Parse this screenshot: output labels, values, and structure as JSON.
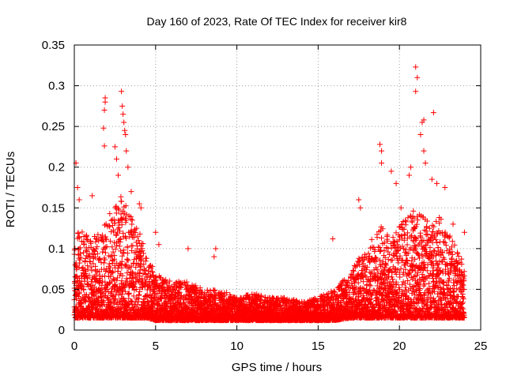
{
  "chart_data": {
    "type": "scatter",
    "title": "Day 160 of 2023, Rate Of TEC Index for receiver kir8",
    "xlabel": "GPS time / hours",
    "ylabel": "ROTI / TECUs",
    "xlim": [
      0,
      25
    ],
    "ylim": [
      0,
      0.35
    ],
    "x_ticks": [
      "0",
      "5",
      "10",
      "15",
      "20",
      "25"
    ],
    "y_ticks": [
      "0",
      "0.05",
      "0.1",
      "0.15",
      "0.2",
      "0.25",
      "0.3",
      "0.35"
    ],
    "grid": true,
    "legend": "none",
    "marker": "+",
    "series_color": "#ff0000",
    "x_range_of_data": [
      0,
      24
    ],
    "envelope": {
      "hours": [
        0,
        0.5,
        1,
        1.5,
        2,
        2.5,
        3,
        3.5,
        4,
        4.5,
        5,
        6,
        7,
        8,
        9,
        10,
        11,
        12,
        13,
        14,
        15,
        16,
        17,
        17.5,
        18,
        18.5,
        19,
        19.5,
        20,
        20.5,
        21,
        21.5,
        22,
        22.5,
        23,
        23.5,
        24
      ],
      "typical_max": [
        0.12,
        0.13,
        0.11,
        0.12,
        0.14,
        0.15,
        0.17,
        0.14,
        0.12,
        0.09,
        0.07,
        0.06,
        0.06,
        0.05,
        0.05,
        0.04,
        0.045,
        0.04,
        0.04,
        0.035,
        0.04,
        0.05,
        0.07,
        0.09,
        0.1,
        0.12,
        0.13,
        0.11,
        0.13,
        0.14,
        0.15,
        0.14,
        0.13,
        0.14,
        0.12,
        0.1,
        0.08
      ],
      "typical_min": [
        0.015,
        0.015,
        0.015,
        0.015,
        0.015,
        0.015,
        0.015,
        0.015,
        0.015,
        0.015,
        0.012,
        0.012,
        0.012,
        0.012,
        0.012,
        0.012,
        0.012,
        0.012,
        0.012,
        0.012,
        0.012,
        0.012,
        0.015,
        0.015,
        0.015,
        0.015,
        0.015,
        0.015,
        0.015,
        0.015,
        0.015,
        0.015,
        0.015,
        0.015,
        0.015,
        0.015,
        0.015
      ]
    },
    "peaks": [
      {
        "x": 0.1,
        "y": 0.205
      },
      {
        "x": 0.2,
        "y": 0.175
      },
      {
        "x": 0.3,
        "y": 0.16
      },
      {
        "x": 1.1,
        "y": 0.165
      },
      {
        "x": 1.9,
        "y": 0.285
      },
      {
        "x": 1.9,
        "y": 0.28
      },
      {
        "x": 1.85,
        "y": 0.27
      },
      {
        "x": 1.8,
        "y": 0.248
      },
      {
        "x": 1.85,
        "y": 0.226
      },
      {
        "x": 2.5,
        "y": 0.225
      },
      {
        "x": 2.6,
        "y": 0.21
      },
      {
        "x": 2.7,
        "y": 0.19
      },
      {
        "x": 2.9,
        "y": 0.293
      },
      {
        "x": 2.95,
        "y": 0.275
      },
      {
        "x": 3.0,
        "y": 0.265
      },
      {
        "x": 3.05,
        "y": 0.255
      },
      {
        "x": 3.1,
        "y": 0.245
      },
      {
        "x": 3.15,
        "y": 0.24
      },
      {
        "x": 3.2,
        "y": 0.22
      },
      {
        "x": 3.3,
        "y": 0.2
      },
      {
        "x": 3.5,
        "y": 0.17
      },
      {
        "x": 4.0,
        "y": 0.155
      },
      {
        "x": 4.1,
        "y": 0.15
      },
      {
        "x": 5.0,
        "y": 0.12
      },
      {
        "x": 5.2,
        "y": 0.105
      },
      {
        "x": 7.0,
        "y": 0.1
      },
      {
        "x": 8.7,
        "y": 0.1
      },
      {
        "x": 8.6,
        "y": 0.09
      },
      {
        "x": 15.9,
        "y": 0.112
      },
      {
        "x": 17.5,
        "y": 0.16
      },
      {
        "x": 17.6,
        "y": 0.15
      },
      {
        "x": 18.8,
        "y": 0.228
      },
      {
        "x": 18.9,
        "y": 0.22
      },
      {
        "x": 18.9,
        "y": 0.205
      },
      {
        "x": 19.5,
        "y": 0.195
      },
      {
        "x": 19.8,
        "y": 0.18
      },
      {
        "x": 20.1,
        "y": 0.15
      },
      {
        "x": 20.6,
        "y": 0.19
      },
      {
        "x": 20.7,
        "y": 0.2
      },
      {
        "x": 21.0,
        "y": 0.323
      },
      {
        "x": 21.1,
        "y": 0.31
      },
      {
        "x": 21.0,
        "y": 0.293
      },
      {
        "x": 21.4,
        "y": 0.255
      },
      {
        "x": 21.5,
        "y": 0.258
      },
      {
        "x": 21.3,
        "y": 0.24
      },
      {
        "x": 21.5,
        "y": 0.22
      },
      {
        "x": 21.6,
        "y": 0.205
      },
      {
        "x": 22.1,
        "y": 0.267
      },
      {
        "x": 22.0,
        "y": 0.185
      },
      {
        "x": 22.3,
        "y": 0.18
      },
      {
        "x": 22.8,
        "y": 0.175
      },
      {
        "x": 23.3,
        "y": 0.13
      },
      {
        "x": 24.0,
        "y": 0.12
      }
    ]
  }
}
